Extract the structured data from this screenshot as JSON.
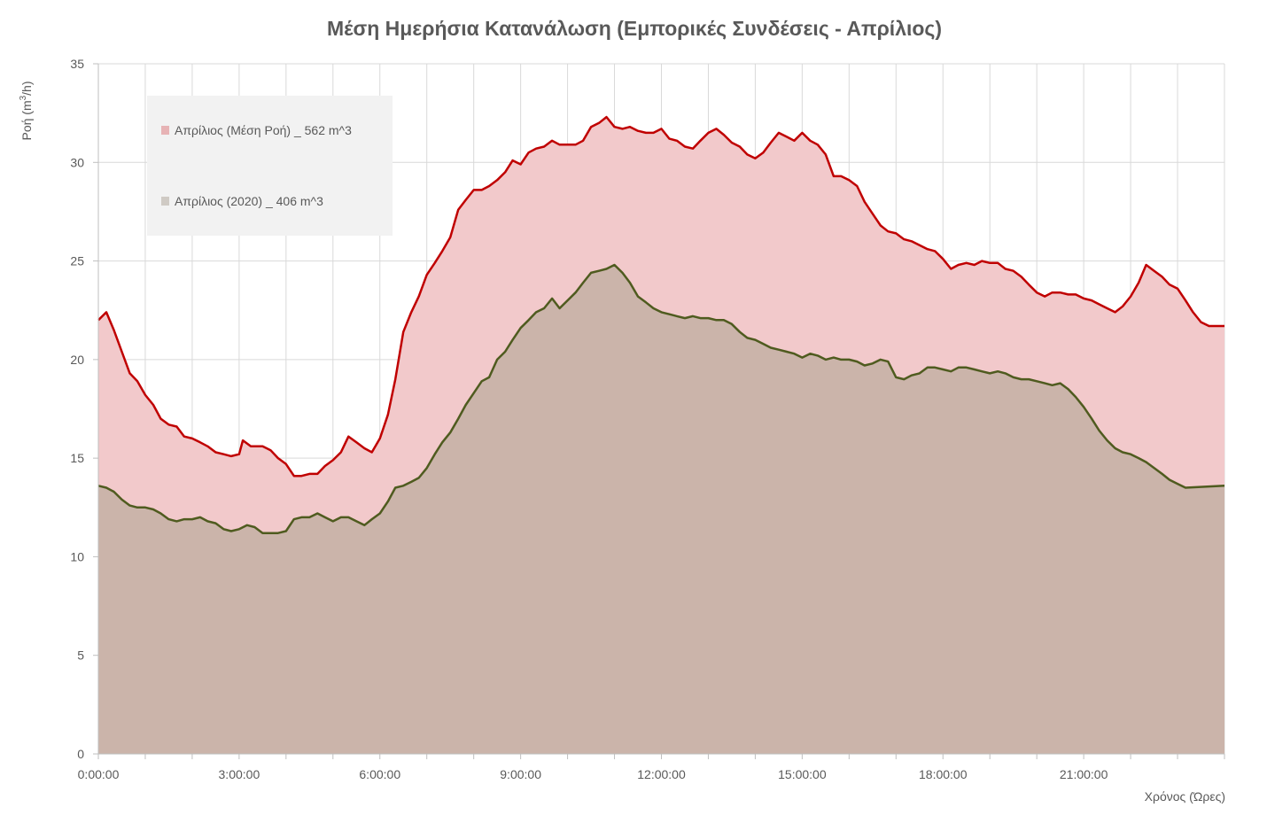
{
  "chart_data": {
    "type": "area",
    "title": "Μέση Ημερήσια Κατανάλωση (Εμπορικές Συνδέσεις - Απρίλιος)",
    "xlabel": "Χρόνος (Ώρες)",
    "ylabel_parts": [
      "Ροή (m",
      "3",
      "/h)"
    ],
    "ylim": [
      0,
      35
    ],
    "yticks": [
      0,
      5,
      10,
      15,
      20,
      25,
      30,
      35
    ],
    "xlim_hours": [
      0,
      24
    ],
    "xticks": [
      {
        "hour": 0,
        "label": "0:00:00"
      },
      {
        "hour": 3,
        "label": "3:00:00"
      },
      {
        "hour": 6,
        "label": "6:00:00"
      },
      {
        "hour": 9,
        "label": "9:00:00"
      },
      {
        "hour": 12,
        "label": "12:00:00"
      },
      {
        "hour": 15,
        "label": "15:00:00"
      },
      {
        "hour": 18,
        "label": "18:00:00"
      },
      {
        "hour": 21,
        "label": "21:00:00"
      }
    ],
    "grid": true,
    "legend_position": "top-left",
    "series": [
      {
        "name": "Απρίλιος (Μέση Ροή) _ 562 m^3",
        "fill": "#f2c9cb",
        "line": "#c00000",
        "legend_swatch": "#e7b3b5",
        "points": [
          [
            0,
            22
          ],
          [
            0.17,
            22.4
          ],
          [
            0.33,
            21.5
          ],
          [
            0.5,
            20.4
          ],
          [
            0.67,
            19.3
          ],
          [
            0.83,
            18.9
          ],
          [
            1,
            18.2
          ],
          [
            1.17,
            17.7
          ],
          [
            1.33,
            17
          ],
          [
            1.5,
            16.7
          ],
          [
            1.67,
            16.6
          ],
          [
            1.83,
            16.1
          ],
          [
            2,
            16
          ],
          [
            2.17,
            15.8
          ],
          [
            2.33,
            15.6
          ],
          [
            2.5,
            15.3
          ],
          [
            2.67,
            15.2
          ],
          [
            2.83,
            15.1
          ],
          [
            3,
            15.2
          ],
          [
            3.08,
            15.9
          ],
          [
            3.25,
            15.6
          ],
          [
            3.5,
            15.6
          ],
          [
            3.67,
            15.4
          ],
          [
            3.83,
            15
          ],
          [
            4,
            14.7
          ],
          [
            4.17,
            14.1
          ],
          [
            4.33,
            14.1
          ],
          [
            4.5,
            14.2
          ],
          [
            4.67,
            14.2
          ],
          [
            4.83,
            14.6
          ],
          [
            5,
            14.9
          ],
          [
            5.17,
            15.3
          ],
          [
            5.33,
            16.1
          ],
          [
            5.5,
            15.8
          ],
          [
            5.67,
            15.5
          ],
          [
            5.83,
            15.3
          ],
          [
            6,
            16
          ],
          [
            6.17,
            17.2
          ],
          [
            6.33,
            19
          ],
          [
            6.5,
            21.4
          ],
          [
            6.67,
            22.4
          ],
          [
            6.83,
            23.2
          ],
          [
            7,
            24.3
          ],
          [
            7.17,
            24.9
          ],
          [
            7.33,
            25.5
          ],
          [
            7.5,
            26.2
          ],
          [
            7.67,
            27.6
          ],
          [
            7.83,
            28.1
          ],
          [
            8,
            28.6
          ],
          [
            8.17,
            28.6
          ],
          [
            8.33,
            28.8
          ],
          [
            8.5,
            29.1
          ],
          [
            8.67,
            29.5
          ],
          [
            8.83,
            30.1
          ],
          [
            9,
            29.9
          ],
          [
            9.17,
            30.5
          ],
          [
            9.33,
            30.7
          ],
          [
            9.5,
            30.8
          ],
          [
            9.67,
            31.1
          ],
          [
            9.83,
            30.9
          ],
          [
            10,
            30.9
          ],
          [
            10.17,
            30.9
          ],
          [
            10.33,
            31.1
          ],
          [
            10.5,
            31.8
          ],
          [
            10.67,
            32
          ],
          [
            10.83,
            32.3
          ],
          [
            11,
            31.8
          ],
          [
            11.17,
            31.7
          ],
          [
            11.33,
            31.8
          ],
          [
            11.5,
            31.6
          ],
          [
            11.67,
            31.5
          ],
          [
            11.83,
            31.5
          ],
          [
            12,
            31.7
          ],
          [
            12.17,
            31.2
          ],
          [
            12.33,
            31.1
          ],
          [
            12.5,
            30.8
          ],
          [
            12.67,
            30.7
          ],
          [
            12.83,
            31.1
          ],
          [
            13,
            31.5
          ],
          [
            13.17,
            31.7
          ],
          [
            13.33,
            31.4
          ],
          [
            13.5,
            31
          ],
          [
            13.67,
            30.8
          ],
          [
            13.83,
            30.4
          ],
          [
            14,
            30.2
          ],
          [
            14.17,
            30.5
          ],
          [
            14.33,
            31
          ],
          [
            14.5,
            31.5
          ],
          [
            14.67,
            31.3
          ],
          [
            14.83,
            31.1
          ],
          [
            15,
            31.5
          ],
          [
            15.17,
            31.1
          ],
          [
            15.33,
            30.9
          ],
          [
            15.5,
            30.4
          ],
          [
            15.67,
            29.3
          ],
          [
            15.83,
            29.3
          ],
          [
            16,
            29.1
          ],
          [
            16.17,
            28.8
          ],
          [
            16.33,
            28
          ],
          [
            16.5,
            27.4
          ],
          [
            16.67,
            26.8
          ],
          [
            16.83,
            26.5
          ],
          [
            17,
            26.4
          ],
          [
            17.17,
            26.1
          ],
          [
            17.33,
            26
          ],
          [
            17.5,
            25.8
          ],
          [
            17.67,
            25.6
          ],
          [
            17.83,
            25.5
          ],
          [
            18,
            25.1
          ],
          [
            18.17,
            24.6
          ],
          [
            18.33,
            24.8
          ],
          [
            18.5,
            24.9
          ],
          [
            18.67,
            24.8
          ],
          [
            18.83,
            25
          ],
          [
            19,
            24.9
          ],
          [
            19.17,
            24.9
          ],
          [
            19.33,
            24.6
          ],
          [
            19.5,
            24.5
          ],
          [
            19.67,
            24.2
          ],
          [
            19.83,
            23.8
          ],
          [
            20,
            23.4
          ],
          [
            20.17,
            23.2
          ],
          [
            20.33,
            23.4
          ],
          [
            20.5,
            23.4
          ],
          [
            20.67,
            23.3
          ],
          [
            20.83,
            23.3
          ],
          [
            21,
            23.1
          ],
          [
            21.17,
            23
          ],
          [
            21.33,
            22.8
          ],
          [
            21.5,
            22.6
          ],
          [
            21.67,
            22.4
          ],
          [
            21.83,
            22.7
          ],
          [
            22,
            23.2
          ],
          [
            22.17,
            23.9
          ],
          [
            22.33,
            24.8
          ],
          [
            22.5,
            24.5
          ],
          [
            22.67,
            24.2
          ],
          [
            22.83,
            23.8
          ],
          [
            23,
            23.6
          ],
          [
            23.17,
            23
          ],
          [
            23.33,
            22.4
          ],
          [
            23.5,
            21.9
          ],
          [
            23.67,
            21.7
          ],
          [
            24,
            21.7
          ]
        ]
      },
      {
        "name": "Απρίλιος (2020) _ 406 m^3",
        "fill": "#cbb4aa",
        "line": "#4f5b1f",
        "legend_swatch": "#cfcac4",
        "points": [
          [
            0,
            13.6
          ],
          [
            0.17,
            13.5
          ],
          [
            0.33,
            13.3
          ],
          [
            0.5,
            12.9
          ],
          [
            0.67,
            12.6
          ],
          [
            0.83,
            12.5
          ],
          [
            1,
            12.5
          ],
          [
            1.17,
            12.4
          ],
          [
            1.33,
            12.2
          ],
          [
            1.5,
            11.9
          ],
          [
            1.67,
            11.8
          ],
          [
            1.83,
            11.9
          ],
          [
            2,
            11.9
          ],
          [
            2.17,
            12
          ],
          [
            2.33,
            11.8
          ],
          [
            2.5,
            11.7
          ],
          [
            2.67,
            11.4
          ],
          [
            2.83,
            11.3
          ],
          [
            3,
            11.4
          ],
          [
            3.17,
            11.6
          ],
          [
            3.33,
            11.5
          ],
          [
            3.5,
            11.2
          ],
          [
            3.67,
            11.2
          ],
          [
            3.83,
            11.2
          ],
          [
            4,
            11.3
          ],
          [
            4.17,
            11.9
          ],
          [
            4.33,
            12
          ],
          [
            4.5,
            12
          ],
          [
            4.67,
            12.2
          ],
          [
            4.83,
            12
          ],
          [
            5,
            11.8
          ],
          [
            5.17,
            12
          ],
          [
            5.33,
            12
          ],
          [
            5.5,
            11.8
          ],
          [
            5.67,
            11.6
          ],
          [
            5.83,
            11.9
          ],
          [
            6,
            12.2
          ],
          [
            6.17,
            12.8
          ],
          [
            6.33,
            13.5
          ],
          [
            6.5,
            13.6
          ],
          [
            6.67,
            13.8
          ],
          [
            6.83,
            14
          ],
          [
            7,
            14.5
          ],
          [
            7.17,
            15.2
          ],
          [
            7.33,
            15.8
          ],
          [
            7.5,
            16.3
          ],
          [
            7.67,
            17
          ],
          [
            7.83,
            17.7
          ],
          [
            8,
            18.3
          ],
          [
            8.17,
            18.9
          ],
          [
            8.33,
            19.1
          ],
          [
            8.5,
            20
          ],
          [
            8.67,
            20.4
          ],
          [
            8.83,
            21
          ],
          [
            9,
            21.6
          ],
          [
            9.17,
            22
          ],
          [
            9.33,
            22.4
          ],
          [
            9.5,
            22.6
          ],
          [
            9.67,
            23.1
          ],
          [
            9.83,
            22.6
          ],
          [
            10,
            23
          ],
          [
            10.17,
            23.4
          ],
          [
            10.33,
            23.9
          ],
          [
            10.5,
            24.4
          ],
          [
            10.67,
            24.5
          ],
          [
            10.83,
            24.6
          ],
          [
            11,
            24.8
          ],
          [
            11.17,
            24.4
          ],
          [
            11.33,
            23.9
          ],
          [
            11.5,
            23.2
          ],
          [
            11.67,
            22.9
          ],
          [
            11.83,
            22.6
          ],
          [
            12,
            22.4
          ],
          [
            12.17,
            22.3
          ],
          [
            12.33,
            22.2
          ],
          [
            12.5,
            22.1
          ],
          [
            12.67,
            22.2
          ],
          [
            12.83,
            22.1
          ],
          [
            13,
            22.1
          ],
          [
            13.17,
            22
          ],
          [
            13.33,
            22
          ],
          [
            13.5,
            21.8
          ],
          [
            13.67,
            21.4
          ],
          [
            13.83,
            21.1
          ],
          [
            14,
            21
          ],
          [
            14.17,
            20.8
          ],
          [
            14.33,
            20.6
          ],
          [
            14.5,
            20.5
          ],
          [
            14.67,
            20.4
          ],
          [
            14.83,
            20.3
          ],
          [
            15,
            20.1
          ],
          [
            15.17,
            20.3
          ],
          [
            15.33,
            20.2
          ],
          [
            15.5,
            20
          ],
          [
            15.67,
            20.1
          ],
          [
            15.83,
            20
          ],
          [
            16,
            20
          ],
          [
            16.17,
            19.9
          ],
          [
            16.33,
            19.7
          ],
          [
            16.5,
            19.8
          ],
          [
            16.67,
            20
          ],
          [
            16.83,
            19.9
          ],
          [
            17,
            19.1
          ],
          [
            17.17,
            19
          ],
          [
            17.33,
            19.2
          ],
          [
            17.5,
            19.3
          ],
          [
            17.67,
            19.6
          ],
          [
            17.83,
            19.6
          ],
          [
            18,
            19.5
          ],
          [
            18.17,
            19.4
          ],
          [
            18.33,
            19.6
          ],
          [
            18.5,
            19.6
          ],
          [
            18.67,
            19.5
          ],
          [
            18.83,
            19.4
          ],
          [
            19,
            19.3
          ],
          [
            19.17,
            19.4
          ],
          [
            19.33,
            19.3
          ],
          [
            19.5,
            19.1
          ],
          [
            19.67,
            19
          ],
          [
            19.83,
            19
          ],
          [
            20,
            18.9
          ],
          [
            20.17,
            18.8
          ],
          [
            20.33,
            18.7
          ],
          [
            20.5,
            18.8
          ],
          [
            20.67,
            18.5
          ],
          [
            20.83,
            18.1
          ],
          [
            21,
            17.6
          ],
          [
            21.17,
            17
          ],
          [
            21.33,
            16.4
          ],
          [
            21.5,
            15.9
          ],
          [
            21.67,
            15.5
          ],
          [
            21.83,
            15.3
          ],
          [
            22,
            15.2
          ],
          [
            22.17,
            15
          ],
          [
            22.33,
            14.8
          ],
          [
            22.5,
            14.5
          ],
          [
            22.67,
            14.2
          ],
          [
            22.83,
            13.9
          ],
          [
            23,
            13.7
          ],
          [
            23.17,
            13.5
          ],
          [
            24,
            13.6
          ]
        ]
      }
    ]
  }
}
